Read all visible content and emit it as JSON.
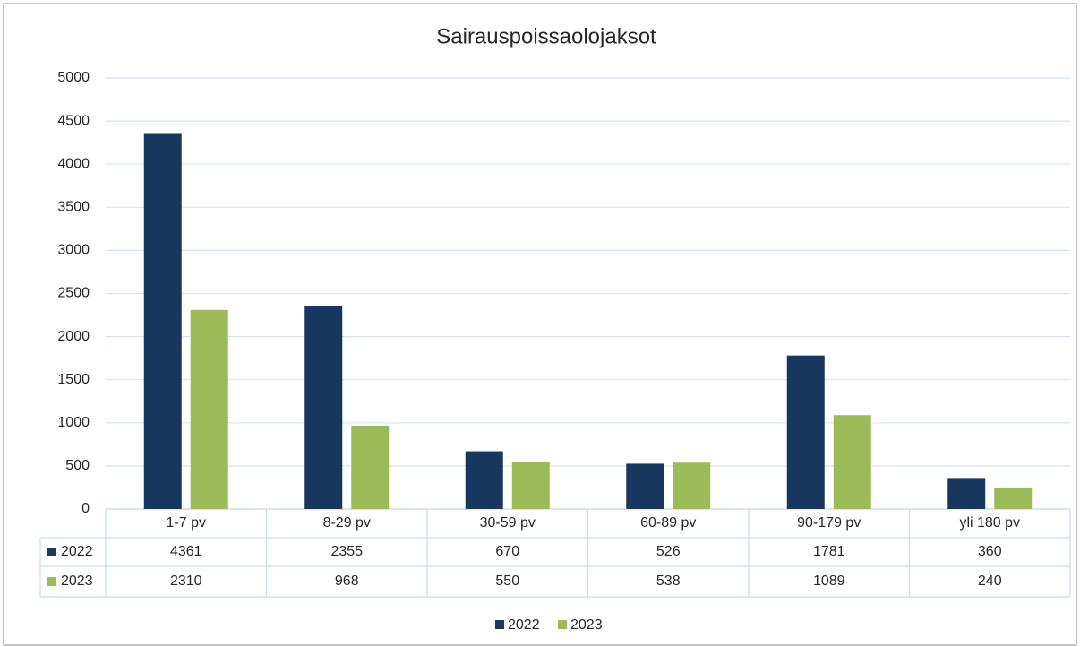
{
  "chart_data": {
    "type": "bar",
    "title": "Sairauspoissaolojaksot",
    "categories": [
      "1-7 pv",
      "8-29 pv",
      "30-59 pv",
      "60-89 pv",
      "90-179 pv",
      "yli 180 pv"
    ],
    "series": [
      {
        "name": "2022",
        "color": "#17375e",
        "values": [
          4361,
          2355,
          670,
          526,
          1781,
          360
        ]
      },
      {
        "name": "2023",
        "color": "#9bbb59",
        "values": [
          2310,
          968,
          550,
          538,
          1089,
          240
        ]
      }
    ],
    "ylim": [
      0,
      5000
    ],
    "yticks": [
      0,
      500,
      1000,
      1500,
      2000,
      2500,
      3000,
      3500,
      4000,
      4500,
      5000
    ],
    "grid": true,
    "legend": "bottom"
  }
}
